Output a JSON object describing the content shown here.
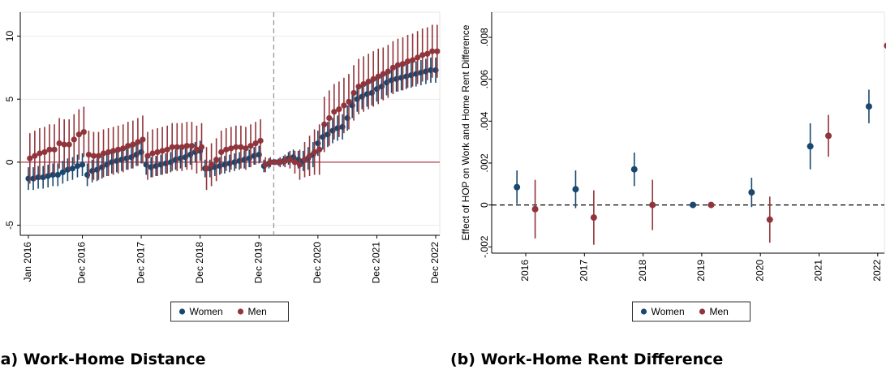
{
  "chart_data": [
    {
      "type": "errorbar",
      "caption": "(a) Work-Home Distance",
      "categories": [
        "Jan 2016",
        null,
        null,
        null,
        null,
        null,
        null,
        null,
        null,
        null,
        null,
        "Dec 2016",
        null,
        null,
        null,
        null,
        null,
        null,
        null,
        null,
        null,
        null,
        null,
        "Dec 2017",
        null,
        null,
        null,
        null,
        null,
        null,
        null,
        null,
        null,
        null,
        null,
        "Dec 2018",
        null,
        null,
        null,
        null,
        null,
        null,
        null,
        null,
        null,
        null,
        null,
        "Dec 2019",
        null,
        null,
        null,
        null,
        null,
        null,
        null,
        null,
        null,
        null,
        null,
        "Dec 2020",
        null,
        null,
        null,
        null,
        null,
        null,
        null,
        null,
        null,
        null,
        null,
        "Dec 2021",
        null,
        null,
        null,
        null,
        null,
        null,
        null,
        null,
        null,
        null,
        null,
        "Dec 2022"
      ],
      "series": [
        {
          "name": "Women",
          "color": "#1a476f",
          "values": [
            -1.3,
            -1.3,
            -1.2,
            -1.2,
            -1.1,
            -1.0,
            -1.0,
            -0.8,
            -0.6,
            -0.5,
            -0.3,
            -0.2,
            -1.0,
            -0.7,
            -0.6,
            -0.4,
            -0.2,
            0.0,
            0.1,
            0.2,
            0.3,
            0.4,
            0.6,
            0.8,
            -0.2,
            -0.4,
            -0.3,
            -0.2,
            -0.1,
            0.0,
            0.2,
            0.3,
            0.4,
            0.6,
            0.8,
            0.9,
            -0.5,
            -0.5,
            -0.4,
            -0.3,
            -0.2,
            -0.1,
            0.0,
            0.1,
            0.2,
            0.3,
            0.5,
            0.6,
            -0.3,
            -0.1,
            0.0,
            0.0,
            0.1,
            0.3,
            0.4,
            0.2,
            0.1,
            0.3,
            0.6,
            1.5,
            2.0,
            2.2,
            2.5,
            2.7,
            2.8,
            3.5,
            4.5,
            5.0,
            5.2,
            5.4,
            5.5,
            5.8,
            6.0,
            6.3,
            6.5,
            6.6,
            6.7,
            6.8,
            6.9,
            7.0,
            7.1,
            7.2,
            7.3,
            7.3
          ],
          "errors": [
            0.9,
            0.9,
            0.9,
            0.9,
            0.9,
            0.9,
            0.9,
            0.9,
            0.9,
            0.9,
            0.9,
            0.9,
            0.9,
            0.9,
            0.9,
            0.9,
            0.9,
            0.9,
            0.9,
            0.9,
            0.9,
            0.9,
            0.9,
            0.9,
            0.8,
            0.8,
            0.8,
            0.8,
            0.8,
            0.8,
            0.8,
            0.8,
            0.8,
            0.8,
            0.8,
            0.8,
            0.7,
            0.7,
            0.7,
            0.7,
            0.7,
            0.7,
            0.7,
            0.7,
            0.7,
            0.7,
            0.7,
            0.7,
            0.5,
            0.4,
            0,
            0.3,
            0.4,
            0.5,
            0.6,
            0.7,
            0.8,
            0.9,
            1.0,
            1.0,
            1.0,
            1.0,
            1.0,
            1.0,
            1.0,
            1.0,
            1.0,
            1.0,
            1.0,
            1.0,
            1.0,
            1.0,
            1.0,
            1.0,
            1.0,
            1.0,
            1.0,
            1.0,
            1.0,
            1.0,
            1.0,
            1.0,
            1.0,
            1.0
          ]
        },
        {
          "name": "Men",
          "color": "#90353b",
          "values": [
            0.3,
            0.5,
            0.7,
            0.8,
            1.0,
            1.0,
            1.5,
            1.4,
            1.4,
            1.8,
            2.2,
            2.4,
            0.6,
            0.5,
            0.5,
            0.7,
            0.8,
            0.9,
            1.0,
            1.1,
            1.3,
            1.4,
            1.6,
            1.8,
            0.5,
            0.7,
            0.8,
            0.9,
            1.0,
            1.2,
            1.2,
            1.2,
            1.3,
            1.3,
            1.0,
            1.2,
            -0.5,
            -0.2,
            0.2,
            0.8,
            1.0,
            1.1,
            1.2,
            1.2,
            1.1,
            1.3,
            1.5,
            1.7,
            -0.2,
            0.0,
            0.0,
            0.0,
            0.1,
            0.2,
            0.0,
            -0.2,
            0.2,
            0.5,
            0.8,
            1.0,
            3.0,
            3.5,
            4.0,
            4.2,
            4.5,
            4.8,
            5.5,
            6.0,
            6.2,
            6.4,
            6.6,
            6.8,
            7.0,
            7.2,
            7.5,
            7.7,
            7.8,
            8.0,
            8.1,
            8.3,
            8.5,
            8.6,
            8.8,
            8.8
          ],
          "errors": [
            2.0,
            2.0,
            2.0,
            2.0,
            2.0,
            2.0,
            2.0,
            2.0,
            2.0,
            2.0,
            2.0,
            2.0,
            1.9,
            1.9,
            1.9,
            1.9,
            1.9,
            1.9,
            1.9,
            1.9,
            1.9,
            1.9,
            1.9,
            1.9,
            1.9,
            1.9,
            1.9,
            1.9,
            1.9,
            1.9,
            1.9,
            1.9,
            1.9,
            1.9,
            1.9,
            1.9,
            1.7,
            1.7,
            1.7,
            1.7,
            1.7,
            1.7,
            1.7,
            1.7,
            1.7,
            1.7,
            1.7,
            1.7,
            0.6,
            0.4,
            0,
            0.4,
            0.5,
            0.7,
            0.9,
            1.2,
            1.4,
            1.6,
            1.8,
            2.0,
            2.2,
            2.2,
            2.2,
            2.2,
            2.2,
            2.2,
            2.2,
            2.2,
            2.2,
            2.2,
            2.2,
            2.2,
            2.1,
            2.1,
            2.1,
            2.1,
            2.1,
            2.1,
            2.1,
            2.1,
            2.1,
            2.1,
            2.1,
            2.1
          ]
        }
      ],
      "ylim": [
        -5.8,
        11.9
      ],
      "yticks": [
        -5,
        0,
        5,
        10
      ],
      "grid": true,
      "hline": {
        "value": 0,
        "color": "#b03a48",
        "dashed": false
      },
      "vline": 50
    },
    {
      "type": "errorbar",
      "caption": "(b) Work-Home Rent Difference",
      "y_label": "Effect of HOP on Work and Home Rent Difference",
      "categories": [
        "2016",
        "2017",
        "2018",
        "2019",
        "2020",
        "2021",
        "2022"
      ],
      "series": [
        {
          "name": "Women",
          "color": "#1a476f",
          "values": [
            0.00085,
            0.00075,
            0.0017,
            0,
            0.0006,
            0.0028,
            0.0047
          ],
          "errors": [
            0.0008,
            0.0009,
            0.0008,
            0,
            0.0007,
            0.0011,
            0.0008
          ]
        },
        {
          "name": "Men",
          "color": "#90353b",
          "values": [
            -0.0002,
            -0.0006,
            0,
            0,
            -0.0007,
            0.0033,
            0.0076
          ],
          "errors": [
            0.0014,
            0.0013,
            0.0012,
            0,
            0.0011,
            0.001,
            0.0009
          ]
        }
      ],
      "ylim": [
        -0.0023,
        0.0092
      ],
      "yticks": [
        {
          "value": -0.002,
          "label": "-.002"
        },
        0,
        {
          "value": 0.002,
          "label": ".002"
        },
        {
          "value": 0.004,
          "label": ".004"
        },
        {
          "value": 0.006,
          "label": ".006"
        },
        {
          "value": 0.008,
          "label": ".008"
        }
      ],
      "grid": false,
      "hline": {
        "value": 0,
        "color": "#000000",
        "dashed": true
      }
    }
  ]
}
